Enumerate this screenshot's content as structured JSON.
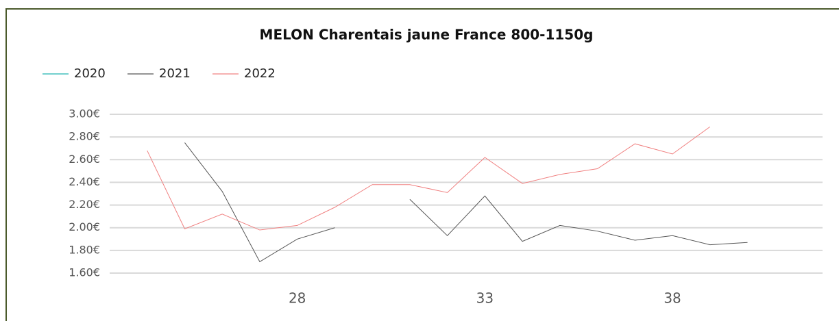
{
  "chart_data": {
    "type": "line",
    "title": "MELON Charentais jaune France 800-1150g",
    "x": [
      24,
      25,
      26,
      27,
      28,
      29,
      30,
      31,
      32,
      33,
      34,
      35,
      36,
      37,
      38,
      39,
      40
    ],
    "series": [
      {
        "name": "2020",
        "color": "#1fb5b0",
        "values": [
          null,
          null,
          null,
          null,
          null,
          null,
          null,
          null,
          null,
          null,
          null,
          null,
          null,
          null,
          null,
          null,
          null
        ]
      },
      {
        "name": "2021",
        "color": "#555555",
        "values": [
          null,
          2.75,
          2.32,
          1.7,
          1.9,
          2.0,
          null,
          2.25,
          1.93,
          2.28,
          1.88,
          2.02,
          1.97,
          1.89,
          1.93,
          1.85,
          1.87
        ]
      },
      {
        "name": "2022",
        "color": "#f08080",
        "values": [
          2.68,
          1.99,
          2.12,
          1.98,
          2.02,
          2.18,
          2.38,
          2.38,
          2.31,
          2.62,
          2.39,
          2.47,
          2.52,
          2.74,
          2.65,
          2.89,
          null
        ]
      }
    ],
    "xlim": [
      23,
      42
    ],
    "xticks": [
      28,
      33,
      38
    ],
    "ylim": [
      1.6,
      3.0
    ],
    "yticks": [
      {
        "value": 1.6,
        "label": "1.60€"
      },
      {
        "value": 1.8,
        "label": "1.80€"
      },
      {
        "value": 2.0,
        "label": "2.00€"
      },
      {
        "value": 2.2,
        "label": "2.20€"
      },
      {
        "value": 2.4,
        "label": "2.40€"
      },
      {
        "value": 2.6,
        "label": "2.60€"
      },
      {
        "value": 2.8,
        "label": "2.80€"
      },
      {
        "value": 3.0,
        "label": "3.00€"
      }
    ],
    "grid": true
  }
}
